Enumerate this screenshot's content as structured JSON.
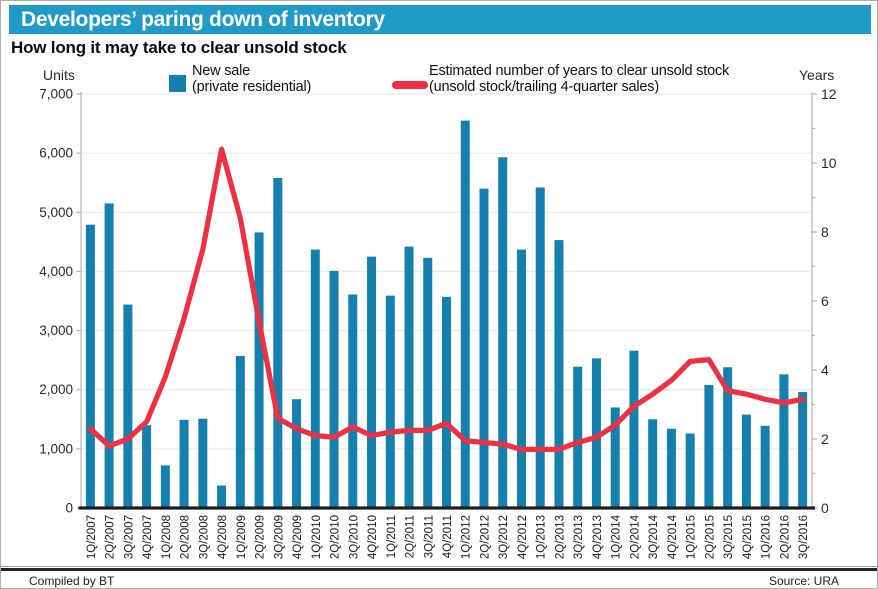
{
  "header": {
    "title": "Developers’ paring down of inventory",
    "subtitle": "How long it may take to clear unsold stock"
  },
  "legend": {
    "bar_label_line1": "New sale",
    "bar_label_line2": "(private residential)",
    "line_label_line1": "Estimated number of years to clear unsold stock",
    "line_label_line2": "(unsold stock/trailing 4-quarter sales)"
  },
  "footer": {
    "left": "Compiled by BT",
    "right": "Source: URA"
  },
  "colors": {
    "banner": "#209bc8",
    "bar": "#1580ad",
    "line": "#ee3142",
    "axis_gray": "#b5b5b5",
    "grid_gray": "#e6e6e6",
    "xaxis_dark": "#1d1d1d",
    "tick_text": "#2a2a2a",
    "xlabel_text": "#1a1a1a"
  },
  "chart_data": {
    "type": "combo",
    "categories": [
      "1Q/2007",
      "2Q/2007",
      "3Q/2007",
      "4Q/2007",
      "1Q/2008",
      "2Q/2008",
      "3Q/2008",
      "4Q/2008",
      "1Q/2009",
      "2Q/2009",
      "3Q/2009",
      "4Q/2009",
      "1Q/2010",
      "2Q/2010",
      "3Q/2010",
      "4Q/2010",
      "1Q/2011",
      "2Q/2011",
      "3Q/2011",
      "4Q/2011",
      "1Q/2012",
      "2Q/2012",
      "3Q/2012",
      "4Q/2012",
      "1Q/2013",
      "2Q/2013",
      "3Q/2013",
      "4Q/2013",
      "1Q/2014",
      "2Q/2014",
      "3Q/2014",
      "4Q/2014",
      "1Q/2015",
      "2Q/2015",
      "3Q/2015",
      "4Q/2015",
      "1Q/2016",
      "2Q/2016",
      "3Q/2016"
    ],
    "series": [
      {
        "name": "New sale (private residential)",
        "type": "bar",
        "axis": "left",
        "values": [
          4790,
          5150,
          3440,
          1400,
          720,
          1490,
          1510,
          380,
          2570,
          4660,
          5580,
          1840,
          4370,
          4010,
          3610,
          4250,
          3590,
          4420,
          4230,
          3570,
          6550,
          5400,
          5930,
          4370,
          5420,
          4530,
          2390,
          2530,
          1700,
          2660,
          1500,
          1340,
          1260,
          2080,
          2380,
          1580,
          1390,
          2260,
          1960
        ]
      },
      {
        "name": "Estimated number of years to clear unsold stock (unsold stock/trailing 4-quarter sales)",
        "type": "line",
        "axis": "right",
        "values": [
          2.3,
          1.8,
          2.0,
          2.5,
          3.8,
          5.5,
          7.5,
          10.4,
          8.4,
          5.4,
          2.6,
          2.3,
          2.1,
          2.05,
          2.35,
          2.1,
          2.2,
          2.25,
          2.25,
          2.45,
          1.95,
          1.9,
          1.85,
          1.7,
          1.7,
          1.7,
          1.9,
          2.05,
          2.4,
          2.95,
          3.3,
          3.7,
          4.25,
          4.3,
          3.4,
          3.3,
          3.15,
          3.05,
          3.15
        ]
      }
    ],
    "title": "Developers’ paring down of inventory",
    "subtitle": "How long it may take to clear unsold stock",
    "left_axis": {
      "label": "Units",
      "min": 0,
      "max": 7000,
      "tick_step": 1000,
      "tick_labels": [
        "0",
        "1,000",
        "2,000",
        "3,000",
        "4,000",
        "5,000",
        "6,000",
        "7,000"
      ]
    },
    "right_axis": {
      "label": "Years",
      "min": 0,
      "max": 12,
      "tick_step": 2,
      "tick_labels": [
        "0",
        "2",
        "4",
        "6",
        "8",
        "10",
        "12"
      ]
    },
    "grid": true,
    "legend_position": "top"
  }
}
